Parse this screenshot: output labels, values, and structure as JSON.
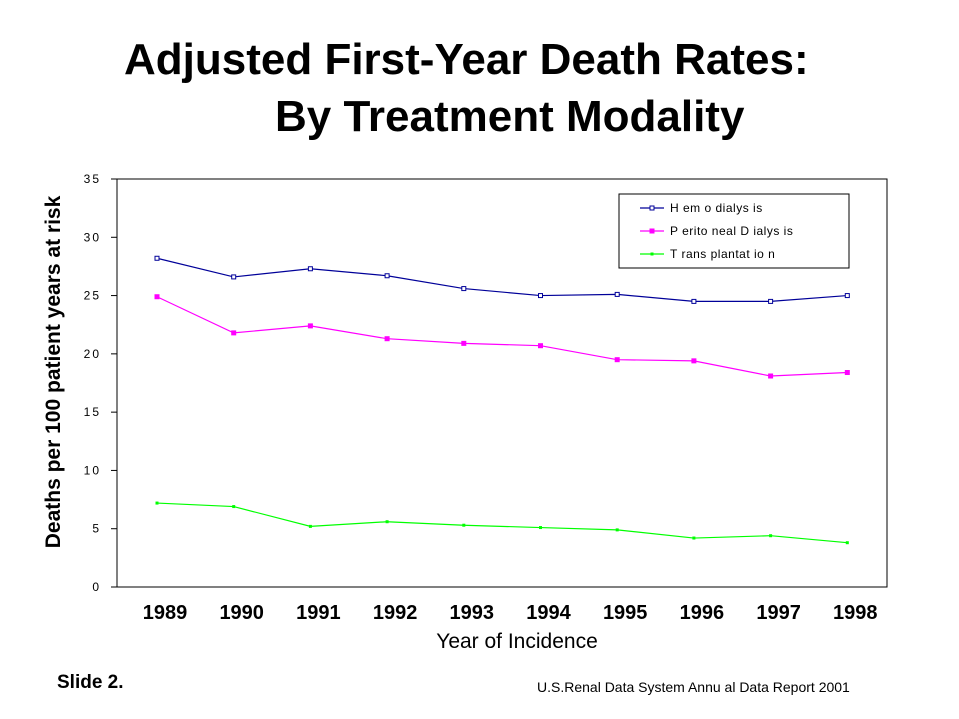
{
  "slide": {
    "title_line1": "Adjusted First-Year Death Rates:",
    "title_line2": "By Treatment Modality",
    "footer_left": "Slide 2.",
    "footer_right": "U.S.Renal Data System Annu al Data Report 2001"
  },
  "chart_data": {
    "type": "line",
    "title": "Adjusted First-Year Death Rates: By Treatment Modality",
    "xlabel": "Year of Incidence",
    "ylabel": "Deaths per 100 patient years at risk",
    "x": [
      "1989",
      "1990",
      "1991",
      "1992",
      "1993",
      "1994",
      "1995",
      "1996",
      "1997",
      "1998"
    ],
    "ylim": [
      0,
      35
    ],
    "yticks": [
      "0",
      "5",
      "10",
      "15",
      "20",
      "25",
      "30",
      "35"
    ],
    "grid": false,
    "legend_position": "top-right",
    "series": [
      {
        "name": "Hemodialysis",
        "legend_label": "H em o dialys is",
        "color": "#000099",
        "marker": "hollow-square",
        "values": [
          28.2,
          26.6,
          27.3,
          26.7,
          25.6,
          25.0,
          25.1,
          24.5,
          24.5,
          25.0
        ]
      },
      {
        "name": "Peritoneal Dialysis",
        "legend_label": "P erito neal D ialys is",
        "color": "#ff00ff",
        "marker": "filled-square",
        "values": [
          24.9,
          21.8,
          22.4,
          21.3,
          20.9,
          20.7,
          19.5,
          19.4,
          18.1,
          18.4
        ]
      },
      {
        "name": "Transplantation",
        "legend_label": "T rans plantat io n",
        "color": "#00ff00",
        "marker": "small-filled-square",
        "values": [
          7.2,
          6.9,
          5.2,
          5.6,
          5.3,
          5.1,
          4.9,
          4.2,
          4.4,
          3.8
        ]
      }
    ]
  }
}
